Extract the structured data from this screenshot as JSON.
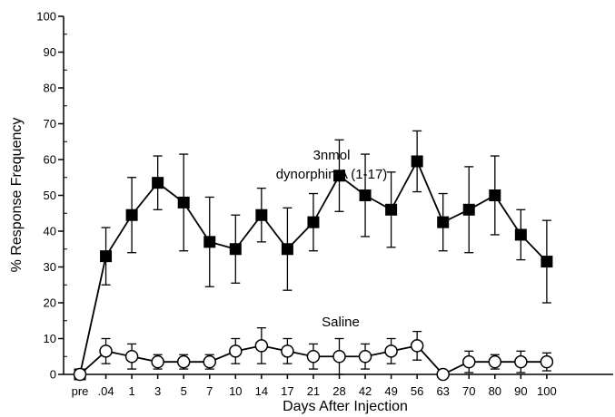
{
  "chart_data": {
    "type": "line",
    "xlabel": "Days  After  Injection",
    "ylabel": "% Response Frequency",
    "ylim": [
      0,
      100
    ],
    "yticks": [
      "0",
      "10",
      "20",
      "30",
      "40",
      "50",
      "60",
      "70",
      "80",
      "90",
      "100"
    ],
    "categories": [
      "pre",
      ".04",
      "1",
      "3",
      "5",
      "7",
      "10",
      "14",
      "17",
      "21",
      "28",
      "42",
      "49",
      "56",
      "63",
      "70",
      "80",
      "90",
      "100"
    ],
    "grid": false,
    "series": [
      {
        "name": "3nmol dynorphin A (1-17)",
        "label_lines": [
          "3nmol",
          "dynorphin A (1-17)"
        ],
        "marker": "filled-square",
        "values": [
          0,
          33,
          44.5,
          53.5,
          48,
          37,
          35,
          44.5,
          35,
          42.5,
          55.5,
          50,
          46,
          59.5,
          42.5,
          46,
          50,
          39,
          31.5
        ],
        "errors": [
          0,
          8,
          10.5,
          7.5,
          13.5,
          12.5,
          9.5,
          7.5,
          11.5,
          8,
          10,
          11.5,
          10.5,
          8.5,
          8,
          12,
          11,
          7,
          11.5
        ]
      },
      {
        "name": "Saline",
        "label_lines": [
          "Saline"
        ],
        "marker": "open-circle",
        "values": [
          0,
          6.5,
          5,
          3.5,
          3.5,
          3.5,
          6.5,
          8,
          6.5,
          5,
          5,
          5,
          6.5,
          8,
          0,
          3.5,
          3.5,
          3.5,
          3.5
        ],
        "errors": [
          0,
          3.5,
          3.5,
          2,
          2,
          2,
          3.5,
          5,
          3.5,
          3.5,
          5,
          3.5,
          3.5,
          4,
          0,
          3,
          2,
          3,
          2.5
        ]
      }
    ]
  }
}
